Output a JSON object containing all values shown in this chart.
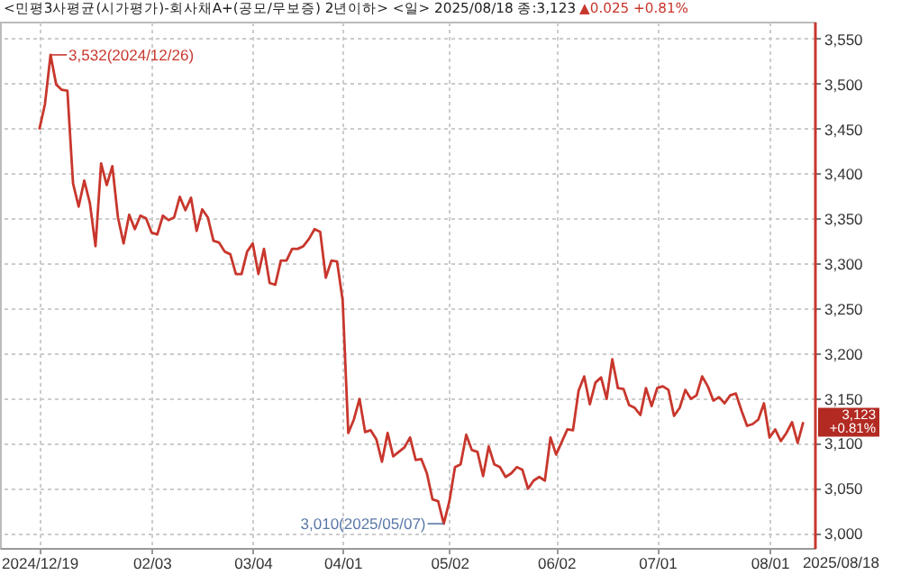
{
  "chart_data": {
    "type": "line",
    "title": "<민평3사평균(시가평가)-회사채A+(공모/무보증) 2년이하> <일> 2025/08/18 종:3,123",
    "subtitle": "▲0.025 +0.81%",
    "categories": [
      "2024/12/19",
      null,
      null,
      null,
      null,
      null,
      null,
      null,
      null,
      null,
      null,
      null,
      null,
      null,
      null,
      null,
      null,
      null,
      null,
      null,
      "02/03",
      null,
      null,
      null,
      null,
      null,
      null,
      null,
      null,
      null,
      null,
      null,
      null,
      null,
      null,
      null,
      null,
      null,
      "03/04",
      null,
      null,
      null,
      null,
      null,
      null,
      null,
      null,
      null,
      null,
      null,
      null,
      null,
      null,
      null,
      "04/01",
      null,
      null,
      null,
      null,
      null,
      null,
      null,
      null,
      null,
      null,
      null,
      null,
      null,
      null,
      null,
      null,
      null,
      null,
      "05/02",
      null,
      null,
      null,
      null,
      null,
      null,
      null,
      null,
      null,
      null,
      null,
      null,
      null,
      null,
      null,
      null,
      null,
      null,
      "06/02",
      null,
      null,
      null,
      null,
      null,
      null,
      null,
      null,
      null,
      null,
      null,
      null,
      null,
      null,
      null,
      null,
      null,
      "07/01",
      null,
      null,
      null,
      null,
      null,
      null,
      null,
      null,
      null,
      null,
      null,
      null,
      null,
      null,
      null,
      null,
      null,
      null,
      null,
      "08/01",
      null,
      null,
      null,
      null,
      null,
      null
    ],
    "series": [
      {
        "color": "#c8372d",
        "values": [
          3449,
          3477,
          3532,
          3499,
          3493,
          3492,
          3389,
          3363,
          3392,
          3367,
          3319,
          3411,
          3387,
          3408,
          3351,
          3322,
          3354,
          3338,
          3353,
          3350,
          3334,
          3332,
          3353,
          3348,
          3351,
          3374,
          3359,
          3373,
          3336,
          3360,
          3351,
          3325,
          3323,
          3313,
          3310,
          3288,
          3288,
          3313,
          3322,
          3288,
          3316,
          3278,
          3276,
          3303,
          3303,
          3316,
          3316,
          3319,
          3327,
          3338,
          3335,
          3284,
          3303,
          3302,
          3259,
          3111,
          3126,
          3149,
          3112,
          3114,
          3104,
          3079,
          3111,
          3085,
          3090,
          3095,
          3106,
          3081,
          3082,
          3066,
          3037,
          3035,
          3010,
          3035,
          3073,
          3076,
          3109,
          3092,
          3090,
          3063,
          3096,
          3076,
          3073,
          3062,
          3066,
          3073,
          3070,
          3049,
          3058,
          3062,
          3058,
          3106,
          3087,
          3101,
          3115,
          3114,
          3158,
          3174,
          3143,
          3167,
          3173,
          3149,
          3193,
          3161,
          3160,
          3142,
          3139,
          3131,
          3161,
          3141,
          3161,
          3163,
          3159,
          3130,
          3139,
          3159,
          3149,
          3153,
          3174,
          3163,
          3147,
          3151,
          3144,
          3153,
          3155,
          3136,
          3119,
          3121,
          3126,
          3144,
          3106,
          3115,
          3102,
          3111,
          3123,
          3100,
          3123
        ]
      }
    ],
    "ylim": [
      2983,
      3569
    ],
    "yticks": [
      {
        "value": 3000,
        "label": "3,000"
      },
      {
        "value": 3050,
        "label": "3,050"
      },
      {
        "value": 3100,
        "label": "3,100"
      },
      {
        "value": 3150,
        "label": "3,150"
      },
      {
        "value": 3200,
        "label": "3,200"
      },
      {
        "value": 3250,
        "label": "3,250"
      },
      {
        "value": 3300,
        "label": "3,300"
      },
      {
        "value": 3350,
        "label": "3,350"
      },
      {
        "value": 3400,
        "label": "3,400"
      },
      {
        "value": 3450,
        "label": "3,450"
      },
      {
        "value": 3500,
        "label": "3,500"
      },
      {
        "value": 3550,
        "label": "3,550"
      }
    ],
    "annotations": [
      "3,532(2024/12/26)",
      "3,010(2025/05/07)",
      "3,123 +0.81%",
      "2025/08/18"
    ],
    "grid": true,
    "marker": "none",
    "line_style": "solid"
  }
}
